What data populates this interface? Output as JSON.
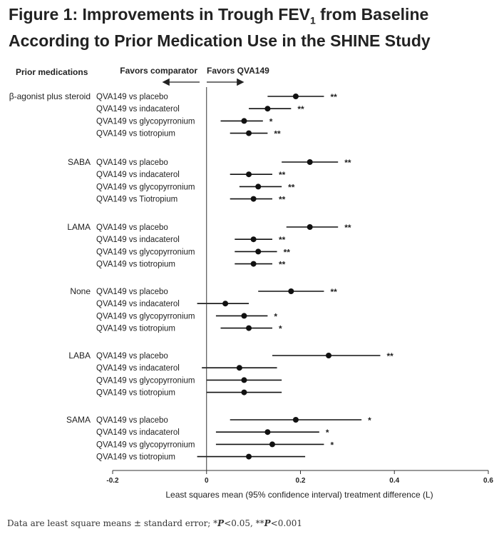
{
  "title": {
    "prefix": "Figure 1: Improvements in Trough FEV",
    "subscript": "1",
    "suffix": " from Baseline",
    "line2": "According to Prior Medication Use in the SHINE Study"
  },
  "footnote": {
    "text": "Data are least square means ± standard error; ",
    "p1_stars": "*",
    "p1_symbol": "P",
    "p1_text": "<0.05, ",
    "p2_stars": "**",
    "p2_symbol": "P",
    "p2_text": "<0.001"
  },
  "chart_data": {
    "type": "forest",
    "title": "",
    "column_header": "Prior medications",
    "favors_left": "Favors comparator",
    "favors_right": "Favors QVA149",
    "xlabel": "Least squares mean (95% confidence interval) treatment difference (L)",
    "xlim": [
      -0.2,
      0.6
    ],
    "x_ticks": [
      "-0.2",
      "0",
      "0.2",
      "0.4",
      "0.6"
    ],
    "x_tick_values": [
      -0.2,
      0,
      0.2,
      0.4,
      0.6
    ],
    "groups": [
      {
        "name": "β-agonist plus steroid",
        "rows": [
          {
            "label": "QVA149 vs placebo",
            "estimate": 0.19,
            "lower": 0.13,
            "upper": 0.25,
            "sig": "**"
          },
          {
            "label": "QVA149 vs indacaterol",
            "estimate": 0.13,
            "lower": 0.09,
            "upper": 0.18,
            "sig": "**"
          },
          {
            "label": "QVA149 vs glycopyrronium",
            "estimate": 0.08,
            "lower": 0.03,
            "upper": 0.12,
            "sig": "*"
          },
          {
            "label": "QVA149 vs tiotropium",
            "estimate": 0.09,
            "lower": 0.05,
            "upper": 0.13,
            "sig": "**"
          }
        ]
      },
      {
        "name": "SABA",
        "rows": [
          {
            "label": "QVA149 vs placebo",
            "estimate": 0.22,
            "lower": 0.16,
            "upper": 0.28,
            "sig": "**"
          },
          {
            "label": "QVA149 vs indacaterol",
            "estimate": 0.09,
            "lower": 0.05,
            "upper": 0.14,
            "sig": "**"
          },
          {
            "label": "QVA149 vs glycopyrronium",
            "estimate": 0.11,
            "lower": 0.07,
            "upper": 0.16,
            "sig": "**"
          },
          {
            "label": "QVA149 vs Tiotropium",
            "estimate": 0.1,
            "lower": 0.05,
            "upper": 0.14,
            "sig": "**"
          }
        ]
      },
      {
        "name": "LAMA",
        "rows": [
          {
            "label": "QVA149 vs placebo",
            "estimate": 0.22,
            "lower": 0.17,
            "upper": 0.28,
            "sig": "**"
          },
          {
            "label": "QVA149 vs indacaterol",
            "estimate": 0.1,
            "lower": 0.06,
            "upper": 0.14,
            "sig": "**"
          },
          {
            "label": "QVA149 vs glycopyrronium",
            "estimate": 0.11,
            "lower": 0.06,
            "upper": 0.15,
            "sig": "**"
          },
          {
            "label": "QVA149 vs tiotropium",
            "estimate": 0.1,
            "lower": 0.06,
            "upper": 0.14,
            "sig": "**"
          }
        ]
      },
      {
        "name": "None",
        "rows": [
          {
            "label": "QVA149 vs placebo",
            "estimate": 0.18,
            "lower": 0.11,
            "upper": 0.25,
            "sig": "**"
          },
          {
            "label": "QVA149 vs indacaterol",
            "estimate": 0.04,
            "lower": -0.02,
            "upper": 0.09,
            "sig": ""
          },
          {
            "label": "QVA149 vs glycopyrronium",
            "estimate": 0.08,
            "lower": 0.02,
            "upper": 0.13,
            "sig": "*"
          },
          {
            "label": "QVA149 vs tiotropium",
            "estimate": 0.09,
            "lower": 0.03,
            "upper": 0.14,
            "sig": "*"
          }
        ]
      },
      {
        "name": "LABA",
        "rows": [
          {
            "label": "QVA149 vs placebo",
            "estimate": 0.26,
            "lower": 0.14,
            "upper": 0.37,
            "sig": "**"
          },
          {
            "label": "QVA149 vs indacaterol",
            "estimate": 0.07,
            "lower": -0.01,
            "upper": 0.15,
            "sig": ""
          },
          {
            "label": "QVA149 vs glycopyrronium",
            "estimate": 0.08,
            "lower": 0.0,
            "upper": 0.16,
            "sig": ""
          },
          {
            "label": "QVA149 vs tiotropium",
            "estimate": 0.08,
            "lower": 0.0,
            "upper": 0.16,
            "sig": ""
          }
        ]
      },
      {
        "name": "SAMA",
        "rows": [
          {
            "label": "QVA149 vs placebo",
            "estimate": 0.19,
            "lower": 0.05,
            "upper": 0.33,
            "sig": "*"
          },
          {
            "label": "QVA149 vs indacaterol",
            "estimate": 0.13,
            "lower": 0.02,
            "upper": 0.24,
            "sig": "*"
          },
          {
            "label": "QVA149 vs glycopyrronium",
            "estimate": 0.14,
            "lower": 0.02,
            "upper": 0.25,
            "sig": "*"
          },
          {
            "label": "QVA149 vs tiotropium",
            "estimate": 0.09,
            "lower": -0.02,
            "upper": 0.21,
            "sig": ""
          }
        ]
      }
    ]
  }
}
